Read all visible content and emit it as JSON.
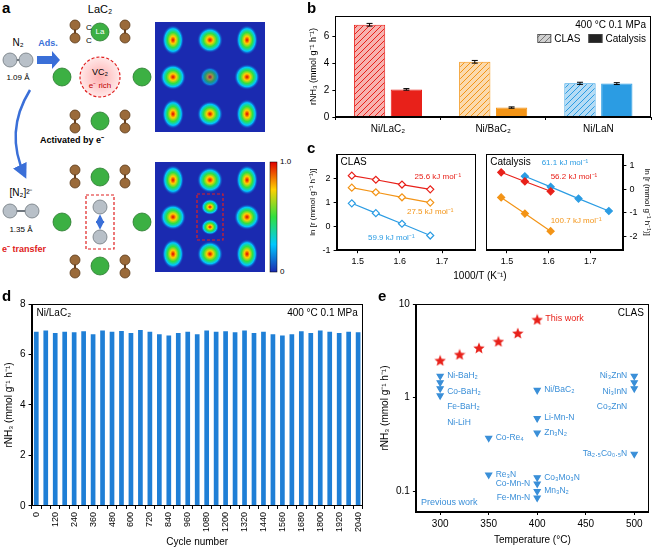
{
  "diagram": {
    "panel": "a",
    "title": "LaC₂",
    "carbon_label": "C",
    "metal_label": "La",
    "vacancy": "VC₂",
    "vacancy_note": "e⁻ rich",
    "molecule": "N₂",
    "molecule_bond": "1.09 Å",
    "adsorb_arrow": "Ads.",
    "activation_arrow": "Activated by e⁻",
    "activated_molecule": "[N₂]²⁻",
    "activated_bond": "1.35 Å",
    "transfer": "e⁻ transfer",
    "colorbar": {
      "range": [
        0,
        1
      ],
      "ticks": [
        0,
        {
          "value": 1,
          "label": "1.0"
        }
      ]
    }
  },
  "chart_data": [
    {
      "panel": "b",
      "type": "bar",
      "annotation": "400 °C 0.1 MPa",
      "y_label": "rNH₃ (mmol g⁻¹ h⁻¹)",
      "categories": [
        "Ni/LaC₂",
        "Ni/BaC₂",
        "Ni/LaN"
      ],
      "series": [
        {
          "name": "CLAS",
          "colors": [
            "#e8211a",
            "#f39416",
            "#2b9ce3"
          ],
          "values": [
            6.85,
            4.1,
            2.5
          ],
          "errors": [
            0.1,
            0.1,
            0.08
          ]
        },
        {
          "name": "Catalysis",
          "colors": [
            "#e8211a",
            "#f39416",
            "#2b9ce3"
          ],
          "values": [
            2.05,
            0.7,
            2.48
          ],
          "errors": [
            0.06,
            0.05,
            0.07
          ]
        }
      ],
      "ylim": [
        0,
        7.5
      ],
      "yticks": [
        0,
        2,
        4,
        6
      ],
      "grid": false,
      "legend": "upper right",
      "data_labels": false
    },
    {
      "panel": "c",
      "type": "scatter",
      "title": "CLAS",
      "x_label": "1000/T (K⁻¹)",
      "y_label": "ln [r (mmol g⁻¹ h⁻¹)]",
      "xlim": [
        1.45,
        1.78
      ],
      "xticks": [
        1.5,
        1.6,
        1.7
      ],
      "ylim": [
        -1,
        3
      ],
      "yticks": [
        -1,
        0,
        1,
        2
      ],
      "grid": false,
      "series": [
        {
          "color": "#e8211a",
          "marker": "diamond_open",
          "line_style": "solid",
          "label": "25.6 kJ mol⁻¹",
          "x": [
            1.486,
            1.543,
            1.605,
            1.672
          ],
          "values": [
            2.1,
            1.93,
            1.73,
            1.53
          ]
        },
        {
          "color": "#f39416",
          "marker": "diamond_open",
          "line_style": "solid",
          "label": "27.5 kJ mol⁻¹",
          "x": [
            1.486,
            1.543,
            1.605,
            1.672
          ],
          "values": [
            1.6,
            1.41,
            1.2,
            0.98
          ]
        },
        {
          "color": "#2b9ce3",
          "marker": "diamond_open",
          "line_style": "solid",
          "label": "59.9 kJ mol⁻¹",
          "x": [
            1.486,
            1.543,
            1.605,
            1.672
          ],
          "values": [
            0.95,
            0.54,
            0.1,
            -0.39
          ]
        }
      ]
    },
    {
      "type": "scatter",
      "title": "Catalysis",
      "y_label": "ln [r (mmol g⁻¹ h⁻¹)]",
      "xlim": [
        1.45,
        1.78
      ],
      "xticks": [
        1.5,
        1.6,
        1.7
      ],
      "ylim": [
        -2.6,
        1.5
      ],
      "yticks": [
        -2,
        -1,
        0,
        1
      ],
      "grid": false,
      "series": [
        {
          "color": "#e8211a",
          "marker": "diamond",
          "line_style": "solid",
          "label": "56.2 kJ mol⁻¹",
          "x": [
            1.486,
            1.543,
            1.605
          ],
          "values": [
            0.72,
            0.33,
            -0.09
          ]
        },
        {
          "color": "#f39416",
          "marker": "diamond",
          "line_style": "solid",
          "label": "100.7 kJ mol⁻¹",
          "x": [
            1.486,
            1.543,
            1.605
          ],
          "values": [
            -0.35,
            -1.04,
            -1.79
          ]
        },
        {
          "color": "#2b9ce3",
          "marker": "diamond",
          "line_style": "solid",
          "label": "61.1 kJ mol⁻¹",
          "x": [
            1.543,
            1.605,
            1.672,
            1.745
          ],
          "values": [
            0.55,
            0.1,
            -0.4,
            -0.93
          ]
        }
      ]
    },
    {
      "panel": "d",
      "type": "bar",
      "title": "Ni/LaC₂",
      "annotation": "400 °C 0.1 MPa",
      "x_label": "Cycle number",
      "y_label": "rNH₃ (mmol g⁻¹ h⁻¹)",
      "color": "#1f7fd6",
      "categories": [
        "0",
        null,
        "120",
        null,
        "240",
        null,
        "360",
        null,
        "480",
        null,
        "600",
        null,
        "720",
        null,
        "840",
        null,
        "960",
        null,
        "1080",
        null,
        "1200",
        null,
        "1320",
        null,
        "1440",
        null,
        "1560",
        null,
        "1680",
        null,
        "1800",
        null,
        "1920",
        null,
        "2040"
      ],
      "values": [
        6.9,
        6.95,
        6.85,
        6.9,
        6.88,
        6.92,
        6.8,
        6.95,
        6.9,
        6.93,
        6.85,
        6.97,
        6.9,
        6.8,
        6.75,
        6.85,
        6.9,
        6.8,
        6.95,
        6.9,
        6.92,
        6.88,
        6.95,
        6.85,
        6.9,
        6.8,
        6.75,
        6.8,
        6.92,
        6.85,
        6.95,
        6.9,
        6.85,
        6.9,
        6.88
      ],
      "ylim": [
        0,
        8
      ],
      "yticks": [
        0,
        2,
        4,
        6,
        8
      ],
      "grid": false,
      "data_labels": false
    },
    {
      "panel": "e",
      "type": "scatter",
      "title": "CLAS",
      "x_label": "Temperature (°C)",
      "y_label": "rNH₃ (mmol g⁻¹ h⁻¹)",
      "log": "y",
      "xlim": [
        275,
        515
      ],
      "xticks": [
        300,
        350,
        400,
        450,
        500
      ],
      "ylim": [
        0.06,
        10
      ],
      "yticks": [
        0.1,
        1,
        10
      ],
      "grid": false,
      "series": [
        {
          "name": "This work",
          "color": "#e8211a",
          "marker": "star",
          "line_style": "none",
          "x": [
            300,
            320,
            340,
            360,
            380,
            400
          ],
          "values": [
            2.5,
            2.9,
            3.4,
            4.0,
            4.9,
            6.85
          ]
        },
        {
          "name": "Previous work",
          "color": "#3a8fd8",
          "marker": "triangle_down",
          "line_style": "none",
          "x": [
            300,
            300,
            300,
            300,
            400,
            400,
            400,
            350,
            350,
            400,
            400,
            400,
            400,
            500,
            500,
            500,
            500
          ],
          "values": [
            1.7,
            1.45,
            1.25,
            1.05,
            1.2,
            0.6,
            0.42,
            0.37,
            0.15,
            0.14,
            0.12,
            0.1,
            0.085,
            1.7,
            1.45,
            1.25,
            0.25
          ],
          "labels": [
            "Ni-BaH₂",
            "Co-BaH₂",
            "Fe-BaH₂",
            "Ni-LiH",
            "Ni/BaC₂",
            "Li-Mn-N",
            "Zn₃N₂",
            "Co-Re₄",
            "Re₃N",
            "Co₃Mo₃N",
            "Co-Mn-N",
            "Mn₃N₂",
            "Fe-Mn-N",
            "Ni₃ZnN",
            "Ni₃InN",
            "Co₃ZnN",
            "Ta₂.₅Co₀.₅N"
          ]
        }
      ]
    }
  ]
}
